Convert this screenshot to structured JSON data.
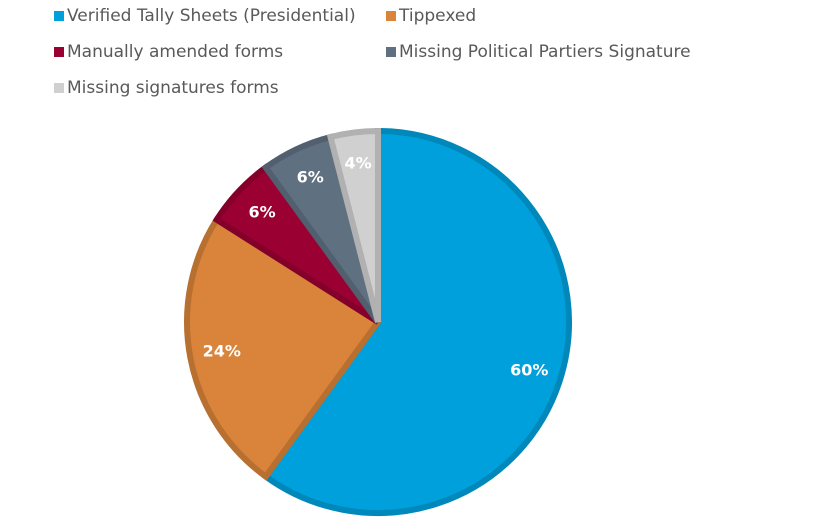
{
  "chart_data": {
    "type": "pie",
    "categories": [
      "Verified Tally Sheets (Presidential)",
      "Tippexed",
      "Manually amended forms",
      "Missing Political Partiers Signature",
      "Missing signatures forms"
    ],
    "values": [
      60,
      24,
      6,
      6,
      4
    ],
    "value_labels": [
      "60%",
      "24%",
      "6%",
      "6%",
      "4%"
    ],
    "colors": [
      "#00a0dc",
      "#d9843a",
      "#9b0032",
      "#5f7081",
      "#d0d0d0"
    ],
    "legend": "top"
  }
}
